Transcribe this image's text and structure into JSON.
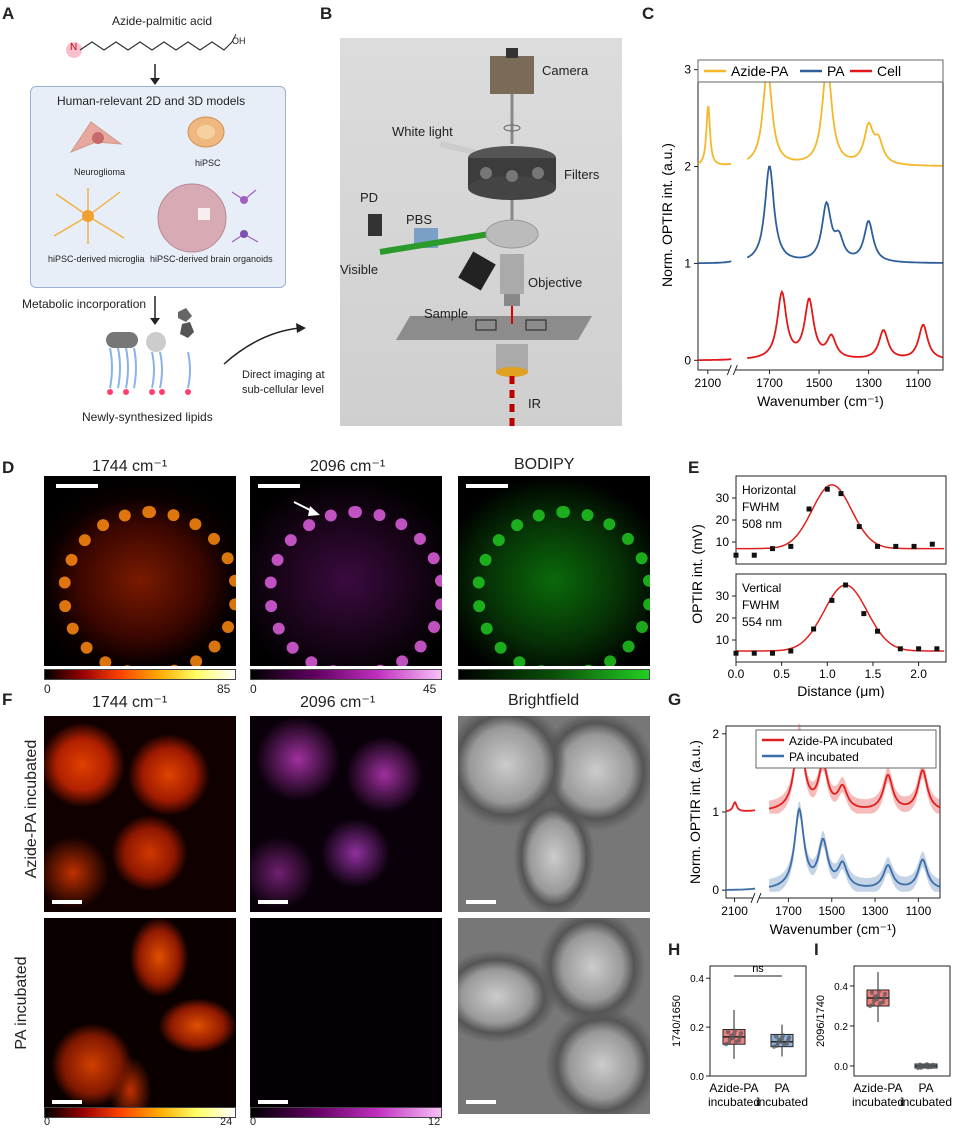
{
  "panels": {
    "A": "A",
    "B": "B",
    "C": "C",
    "D": "D",
    "E": "E",
    "F": "F",
    "G": "G",
    "H": "H",
    "I": "I"
  },
  "panelA": {
    "molecule": "Azide-palmitic acid",
    "n_atom": "N",
    "box_title": "Human-relevant 2D and 3D models",
    "models": [
      "Neuroglioma",
      "hiPSC",
      "hiPSC-derived microglia",
      "hiPSC-derived brain organoids"
    ],
    "step": "Metabolic incorporation",
    "lipids": "Newly-synthesized lipids",
    "imaging": "Direct imaging at\nsub-cellular level"
  },
  "panelB": {
    "labels": {
      "camera": "Camera",
      "white_light": "White light",
      "filters": "Filters",
      "pd": "PD",
      "pbs": "PBS",
      "visible": "Visible",
      "objective": "Objective",
      "sample": "Sample",
      "ir": "IR"
    }
  },
  "panelD": {
    "titles": [
      "1744 cm⁻¹",
      "2096 cm⁻¹",
      "BODIPY"
    ],
    "cbar1": {
      "min": "0",
      "max": "85"
    },
    "cbar2": {
      "min": "0",
      "max": "45"
    }
  },
  "panelF": {
    "titles": [
      "1744 cm⁻¹",
      "2096 cm⁻¹",
      "Brightfield"
    ],
    "rows": [
      "Azide-PA incubated",
      "PA incubated"
    ],
    "cbar1": {
      "min": "0",
      "max": "24"
    },
    "cbar2": {
      "min": "0",
      "max": "12"
    }
  },
  "colors": {
    "azide": "#f5b82a",
    "pa": "#2e5f99",
    "cell": "#e01818",
    "red": "#e02020",
    "blue": "#3c6ea8",
    "hot": "#ff6a00",
    "mag": "#e040e0",
    "grn": "#22d022"
  },
  "chart_data": [
    {
      "id": "C",
      "type": "line",
      "xlabel": "Wavenumber (cm⁻¹)",
      "ylabel": "Norm. OPTIR int. (a.u.)",
      "xlim": [
        2200,
        1000
      ],
      "ylim": [
        -0.1,
        3.1
      ],
      "x_axis_break": true,
      "xticks": [
        2100,
        1700,
        1500,
        1300,
        1100
      ],
      "yticks": [
        0,
        1,
        2,
        3
      ],
      "legend": [
        "Azide-PA",
        "PA",
        "Cell"
      ],
      "series": [
        {
          "name": "Azide-PA",
          "offset": 2,
          "peaks": [
            [
              2096,
              0.62
            ],
            [
              1708,
              1.0
            ],
            [
              1470,
              0.82
            ],
            [
              1460,
              0.25
            ],
            [
              1300,
              0.38
            ],
            [
              1260,
              0.22
            ]
          ]
        },
        {
          "name": "PA",
          "offset": 1,
          "peaks": [
            [
              1700,
              1.0
            ],
            [
              1470,
              0.58
            ],
            [
              1420,
              0.22
            ],
            [
              1300,
              0.42
            ]
          ]
        },
        {
          "name": "Cell",
          "offset": 0,
          "peaks": [
            [
              1650,
              0.68
            ],
            [
              1540,
              0.6
            ],
            [
              1450,
              0.22
            ],
            [
              1240,
              0.3
            ],
            [
              1080,
              0.36
            ]
          ]
        }
      ]
    },
    {
      "id": "E",
      "type": "scatter+fit",
      "xlabel": "Distance (μm)",
      "ylabel": "OPTIR int. (mV)",
      "xlim": [
        0,
        2.3
      ],
      "xticks": [
        0.0,
        0.5,
        1.0,
        1.5,
        2.0
      ],
      "yticks_top": [
        10,
        20,
        30
      ],
      "yticks_bottom": [
        10,
        20,
        30
      ],
      "subplots": [
        {
          "label": "Horizontal\nFWHM\n508 nm",
          "points": [
            [
              0.0,
              4
            ],
            [
              0.2,
              4
            ],
            [
              0.4,
              7
            ],
            [
              0.6,
              8
            ],
            [
              0.8,
              25
            ],
            [
              1.0,
              34
            ],
            [
              1.15,
              32
            ],
            [
              1.35,
              17
            ],
            [
              1.55,
              8
            ],
            [
              1.75,
              8
            ],
            [
              1.95,
              8
            ],
            [
              2.15,
              9
            ]
          ],
          "fit": {
            "base": 7,
            "amp": 29,
            "center": 1.05,
            "fwhm": 0.508
          }
        },
        {
          "label": "Vertical\nFWHM\n554 nm",
          "points": [
            [
              0.0,
              4
            ],
            [
              0.2,
              4
            ],
            [
              0.4,
              4
            ],
            [
              0.6,
              5
            ],
            [
              0.85,
              15
            ],
            [
              1.05,
              28
            ],
            [
              1.2,
              35
            ],
            [
              1.4,
              22
            ],
            [
              1.55,
              14
            ],
            [
              1.8,
              6
            ],
            [
              2.0,
              6
            ],
            [
              2.2,
              6
            ]
          ],
          "fit": {
            "base": 5,
            "amp": 30,
            "center": 1.2,
            "fwhm": 0.554
          }
        }
      ]
    },
    {
      "id": "G",
      "type": "line",
      "xlabel": "Wavenumber (cm⁻¹)",
      "ylabel": "Norm. OPTIR int. (a.u.)",
      "xlim": [
        2200,
        1000
      ],
      "ylim": [
        -0.1,
        2.1
      ],
      "x_axis_break": true,
      "xticks": [
        2100,
        1700,
        1500,
        1300,
        1100
      ],
      "yticks": [
        0,
        1,
        2
      ],
      "legend": [
        "Azide-PA incubated",
        "PA incubated"
      ],
      "series": [
        {
          "name": "Azide-PA incubated",
          "offset": 1,
          "peaks": [
            [
              2096,
              0.12
            ],
            [
              1650,
              1.0
            ],
            [
              1540,
              0.55
            ],
            [
              1450,
              0.28
            ],
            [
              1240,
              0.45
            ],
            [
              1080,
              0.52
            ]
          ]
        },
        {
          "name": "PA incubated",
          "offset": 0,
          "peaks": [
            [
              1650,
              1.0
            ],
            [
              1540,
              0.58
            ],
            [
              1450,
              0.3
            ],
            [
              1240,
              0.3
            ],
            [
              1080,
              0.38
            ]
          ]
        }
      ]
    },
    {
      "id": "H",
      "type": "box",
      "ylabel": "1740/1650",
      "ylim": [
        0,
        0.45
      ],
      "yticks": [
        0.0,
        0.2,
        0.4
      ],
      "categories": [
        "Azide-PA\nincubated",
        "PA\nincubated"
      ],
      "boxes": [
        {
          "q1": 0.13,
          "median": 0.16,
          "q3": 0.19,
          "min": 0.07,
          "max": 0.27
        },
        {
          "q1": 0.12,
          "median": 0.14,
          "q3": 0.17,
          "min": 0.08,
          "max": 0.21
        }
      ],
      "annotation": "ns"
    },
    {
      "id": "I",
      "type": "box",
      "ylabel": "2096/1740",
      "ylim": [
        -0.05,
        0.5
      ],
      "yticks": [
        0.0,
        0.2,
        0.4
      ],
      "categories": [
        "Azide-PA\nincubated",
        "PA\nincubated"
      ],
      "boxes": [
        {
          "q1": 0.3,
          "median": 0.34,
          "q3": 0.38,
          "min": 0.22,
          "max": 0.47
        },
        {
          "q1": -0.01,
          "median": 0.0,
          "q3": 0.01,
          "min": -0.01,
          "max": 0.01
        }
      ]
    }
  ]
}
